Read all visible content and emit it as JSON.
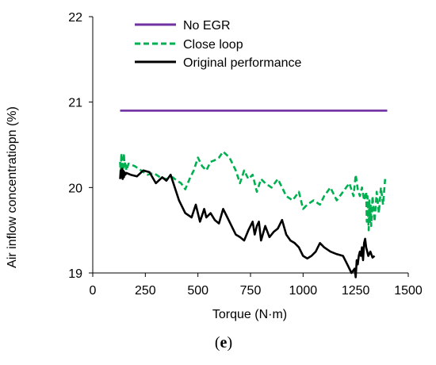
{
  "chart_data": {
    "type": "line",
    "xlabel": "Torque (N·m)",
    "ylabel": "Air inflow concentratiopn (%)",
    "xlim": [
      0,
      1500
    ],
    "ylim": [
      19,
      22
    ],
    "xticks": [
      0,
      250,
      500,
      750,
      1000,
      1250,
      1500
    ],
    "yticks": [
      19,
      20,
      21,
      22
    ],
    "grid": false,
    "legend_position": "top-left",
    "panel_label_prefix": "(",
    "panel_label": "e",
    "panel_label_suffix": ")",
    "series": [
      {
        "name": "No EGR",
        "color": "#7030a0",
        "style": "solid",
        "x": [
          130,
          1400
        ],
        "y": [
          20.9,
          20.9
        ]
      },
      {
        "name": "Close loop",
        "color": "#00b050",
        "style": "dashed",
        "x": [
          130,
          133,
          136,
          139,
          142,
          145,
          148,
          151,
          155,
          160,
          170,
          200,
          230,
          260,
          290,
          320,
          350,
          380,
          400,
          420,
          440,
          460,
          480,
          500,
          520,
          540,
          560,
          580,
          600,
          620,
          650,
          680,
          700,
          720,
          740,
          760,
          780,
          800,
          820,
          850,
          880,
          900,
          920,
          950,
          980,
          1000,
          1020,
          1050,
          1080,
          1100,
          1130,
          1160,
          1190,
          1220,
          1240,
          1250,
          1260,
          1270,
          1280,
          1290,
          1300,
          1303,
          1306,
          1309,
          1312,
          1315,
          1318,
          1321,
          1324,
          1327,
          1330,
          1340,
          1350,
          1360,
          1370,
          1380,
          1390
        ],
        "y": [
          20.3,
          20.15,
          20.4,
          20.2,
          20.35,
          20.1,
          20.4,
          20.25,
          20.3,
          20.2,
          20.28,
          20.25,
          20.2,
          20.15,
          20.17,
          20.12,
          20.1,
          20.12,
          20.08,
          20.05,
          19.98,
          20.1,
          20.2,
          20.35,
          20.25,
          20.2,
          20.3,
          20.32,
          20.35,
          20.42,
          20.35,
          20.2,
          20.05,
          20.2,
          20.1,
          20.15,
          19.95,
          20.1,
          20.05,
          20.0,
          20.1,
          20.0,
          19.9,
          19.85,
          19.95,
          19.75,
          19.8,
          19.85,
          19.8,
          19.9,
          20.0,
          19.85,
          19.95,
          20.05,
          19.9,
          20.15,
          19.98,
          19.9,
          20.0,
          19.85,
          19.95,
          19.6,
          19.9,
          19.7,
          19.5,
          19.85,
          19.6,
          19.8,
          19.55,
          19.7,
          19.9,
          19.6,
          19.95,
          19.7,
          20.0,
          19.8,
          20.1
        ]
      },
      {
        "name": "Original performance",
        "color": "#000000",
        "style": "solid",
        "x": [
          130,
          133,
          136,
          139,
          142,
          145,
          148,
          151,
          155,
          160,
          180,
          210,
          240,
          270,
          300,
          330,
          350,
          370,
          390,
          410,
          440,
          470,
          490,
          510,
          530,
          540,
          560,
          580,
          600,
          620,
          640,
          660,
          680,
          700,
          720,
          740,
          760,
          770,
          780,
          790,
          800,
          820,
          840,
          860,
          880,
          900,
          920,
          940,
          960,
          980,
          1000,
          1020,
          1040,
          1060,
          1080,
          1100,
          1130,
          1160,
          1190,
          1210,
          1230,
          1245,
          1250,
          1255,
          1260,
          1265,
          1270,
          1275,
          1280,
          1285,
          1290,
          1295,
          1300,
          1310,
          1320,
          1330,
          1340
        ],
        "y": [
          20.1,
          20.2,
          20.12,
          20.22,
          20.1,
          20.2,
          20.12,
          20.18,
          20.15,
          20.17,
          20.15,
          20.13,
          20.2,
          20.18,
          20.05,
          20.12,
          20.08,
          20.15,
          20.0,
          19.85,
          19.7,
          19.65,
          19.8,
          19.6,
          19.75,
          19.65,
          19.7,
          19.62,
          19.58,
          19.75,
          19.65,
          19.55,
          19.45,
          19.42,
          19.38,
          19.5,
          19.6,
          19.45,
          19.55,
          19.6,
          19.38,
          19.55,
          19.42,
          19.48,
          19.52,
          19.62,
          19.45,
          19.38,
          19.35,
          19.3,
          19.2,
          19.17,
          19.2,
          19.25,
          19.35,
          19.3,
          19.25,
          19.22,
          19.2,
          19.1,
          19.0,
          19.05,
          18.95,
          19.15,
          19.1,
          19.2,
          19.25,
          19.2,
          19.3,
          19.15,
          19.35,
          19.4,
          19.3,
          19.2,
          19.25,
          19.18,
          19.2
        ]
      }
    ]
  }
}
